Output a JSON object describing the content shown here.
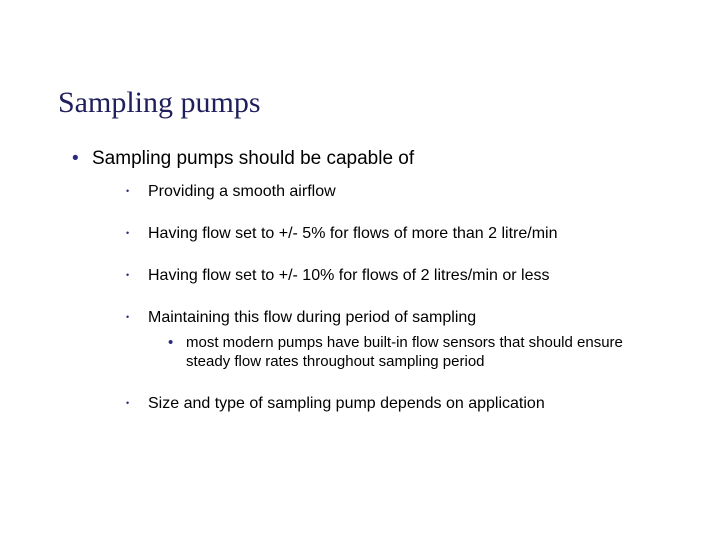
{
  "title": "Sampling pumps",
  "colors": {
    "title": "#1f1f5c",
    "bullet": "#2a2a80",
    "text": "#000000",
    "background": "#ffffff"
  },
  "typography": {
    "title_family": "Times New Roman",
    "title_size_pt": 22,
    "body_family": "Arial",
    "lvl1_size_pt": 14,
    "lvl2_size_pt": 12,
    "lvl3_size_pt": 11
  },
  "bullets": {
    "lvl1": [
      {
        "text": "Sampling pumps should be capable of",
        "children": [
          {
            "text": "Providing a smooth airflow"
          },
          {
            "text": "Having flow set to +/- 5% for flows of more than 2 litre/min"
          },
          {
            "text": "Having flow set to +/- 10% for flows of 2 litres/min or less"
          },
          {
            "text": "Maintaining this flow during period of sampling",
            "children": [
              {
                "text": "most modern pumps have built-in flow sensors that should ensure steady flow rates throughout sampling period"
              }
            ]
          },
          {
            "text": "Size and type of sampling pump depends on application"
          }
        ]
      }
    ]
  }
}
